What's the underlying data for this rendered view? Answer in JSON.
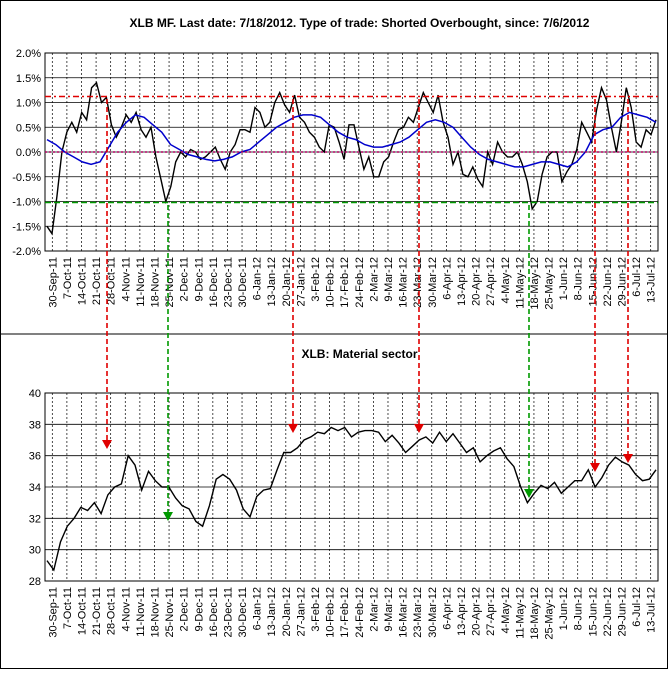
{
  "chart_data": [
    {
      "type": "line",
      "title": "XLB MF. Last date: 7/18/2012. Type of trade: Shorted Overbought, since: 7/6/2012",
      "x_ticks": [
        "30-Sep-11",
        "7-Oct-11",
        "14-Oct-11",
        "21-Oct-11",
        "28-Oct-11",
        "4-Nov-11",
        "11-Nov-11",
        "18-Nov-11",
        "25-Nov-11",
        "2-Dec-11",
        "9-Dec-11",
        "16-Dec-11",
        "23-Dec-11",
        "30-Dec-11",
        "6-Jan-12",
        "13-Jan-12",
        "20-Jan-12",
        "27-Jan-12",
        "3-Feb-12",
        "10-Feb-12",
        "17-Feb-12",
        "24-Feb-12",
        "2-Mar-12",
        "9-Mar-12",
        "16-Mar-12",
        "23-Mar-12",
        "30-Mar-12",
        "6-Apr-12",
        "13-Apr-12",
        "20-Apr-12",
        "27-Apr-12",
        "4-May-12",
        "11-May-12",
        "18-May-12",
        "25-May-12",
        "1-Jun-12",
        "8-Jun-12",
        "15-Jun-12",
        "22-Jun-12",
        "29-Jun-12",
        "6-Jul-12",
        "13-Jul-12"
      ],
      "y_ticks": [
        "2.0%",
        "1.5%",
        "1.0%",
        "0.5%",
        "0.0%",
        "-0.5%",
        "-1.0%",
        "-1.5%",
        "-2.0%"
      ],
      "ylim": [
        -2.0,
        2.0
      ],
      "overbought_level": 1.12,
      "oversold_level": -1.02,
      "series": [
        {
          "color": "#000000",
          "values": [
            -1.5,
            -1.65,
            -0.9,
            0.0,
            0.4,
            0.6,
            0.4,
            0.8,
            0.65,
            1.3,
            1.4,
            1.0,
            1.1,
            0.55,
            0.3,
            0.5,
            0.75,
            0.6,
            0.8,
            0.45,
            0.3,
            0.5,
            -0.1,
            -0.55,
            -1.0,
            -0.7,
            -0.2,
            0.0,
            -0.1,
            0.05,
            0.0,
            -0.15,
            -0.1,
            0.0,
            0.1,
            -0.15,
            -0.35,
            0.0,
            0.15,
            0.45,
            0.45,
            0.4,
            0.9,
            0.8,
            0.5,
            0.6,
            1.0,
            1.2,
            0.95,
            0.8,
            1.15,
            0.7,
            0.6,
            0.4,
            0.3,
            0.1,
            0.0,
            0.55,
            0.5,
            0.2,
            -0.15,
            0.55,
            0.55,
            0.1,
            -0.35,
            -0.1,
            -0.5,
            -0.5,
            -0.2,
            -0.1,
            0.2,
            0.45,
            0.5,
            0.7,
            0.6,
            0.9,
            1.2,
            1.0,
            0.8,
            1.15,
            0.6,
            0.3,
            -0.25,
            0.0,
            -0.45,
            -0.5,
            -0.3,
            -0.55,
            -0.7,
            0.0,
            -0.25,
            0.2,
            0.0,
            -0.1,
            -0.1,
            0.0,
            -0.25,
            -0.6,
            -1.15,
            -1.0,
            -0.45,
            -0.1,
            0.0,
            0.0,
            -0.6,
            -0.4,
            -0.25,
            0.05,
            0.6,
            0.4,
            0.2,
            0.85,
            1.3,
            1.05,
            0.5,
            0.0,
            0.6,
            1.3,
            0.9,
            0.2,
            0.1,
            0.45,
            0.35,
            0.65
          ]
        },
        {
          "color": "#0000cc",
          "values": [
            0.25,
            0.15,
            0.0,
            -0.1,
            -0.2,
            -0.25,
            -0.2,
            0.1,
            0.4,
            0.6,
            0.75,
            0.7,
            0.55,
            0.4,
            0.15,
            0.05,
            -0.05,
            -0.1,
            -0.15,
            -0.18,
            -0.15,
            -0.1,
            0.0,
            0.05,
            0.2,
            0.35,
            0.5,
            0.6,
            0.7,
            0.75,
            0.75,
            0.7,
            0.55,
            0.4,
            0.3,
            0.25,
            0.15,
            0.1,
            0.1,
            0.15,
            0.2,
            0.3,
            0.45,
            0.6,
            0.65,
            0.6,
            0.5,
            0.3,
            0.1,
            -0.05,
            -0.15,
            -0.2,
            -0.25,
            -0.3,
            -0.3,
            -0.25,
            -0.2,
            -0.2,
            -0.25,
            -0.3,
            -0.2,
            0.0,
            0.35,
            0.45,
            0.5,
            0.7,
            0.8,
            0.75,
            0.7,
            0.6
          ]
        }
      ]
    },
    {
      "type": "line",
      "title": "XLB: Material sector",
      "x_ticks": [
        "30-Sep-11",
        "7-Oct-11",
        "14-Oct-11",
        "21-Oct-11",
        "28-Oct-11",
        "4-Nov-11",
        "11-Nov-11",
        "18-Nov-11",
        "25-Nov-11",
        "2-Dec-11",
        "9-Dec-11",
        "16-Dec-11",
        "23-Dec-11",
        "30-Dec-11",
        "6-Jan-12",
        "13-Jan-12",
        "20-Jan-12",
        "27-Jan-12",
        "3-Feb-12",
        "10-Feb-12",
        "17-Feb-12",
        "24-Feb-12",
        "2-Mar-12",
        "9-Mar-12",
        "16-Mar-12",
        "23-Mar-12",
        "30-Mar-12",
        "6-Apr-12",
        "13-Apr-12",
        "20-Apr-12",
        "27-Apr-12",
        "4-May-12",
        "11-May-12",
        "18-May-12",
        "25-May-12",
        "1-Jun-12",
        "8-Jun-12",
        "15-Jun-12",
        "22-Jun-12",
        "29-Jun-12",
        "6-Jul-12",
        "13-Jul-12"
      ],
      "y_ticks": [
        "40",
        "38",
        "36",
        "34",
        "32",
        "30",
        "28"
      ],
      "ylim": [
        28,
        40
      ],
      "series": [
        {
          "color": "#000000",
          "values": [
            29.3,
            28.7,
            30.5,
            31.5,
            32.0,
            32.7,
            32.5,
            33.0,
            32.3,
            33.5,
            34.0,
            34.2,
            36.0,
            35.4,
            33.8,
            35.0,
            34.4,
            34.0,
            34.0,
            33.3,
            32.8,
            32.6,
            31.8,
            31.5,
            32.8,
            34.5,
            34.8,
            34.5,
            33.8,
            32.6,
            32.1,
            33.4,
            33.8,
            33.9,
            35.1,
            36.2,
            36.2,
            36.5,
            37.0,
            37.2,
            37.5,
            37.4,
            37.8,
            37.6,
            37.8,
            37.2,
            37.5,
            37.6,
            37.6,
            37.5,
            36.9,
            37.3,
            36.8,
            36.2,
            36.6,
            37.0,
            37.2,
            36.8,
            37.5,
            36.9,
            37.4,
            36.8,
            36.2,
            36.5,
            35.6,
            36.0,
            36.3,
            36.5,
            35.8,
            35.3,
            34.0,
            33.0,
            33.6,
            34.1,
            33.9,
            34.3,
            33.6,
            34.0,
            34.4,
            34.4,
            35.1,
            34.0,
            34.6,
            35.4,
            35.9,
            35.6,
            35.4,
            34.8,
            34.4,
            34.5,
            35.1
          ]
        }
      ]
    }
  ]
}
